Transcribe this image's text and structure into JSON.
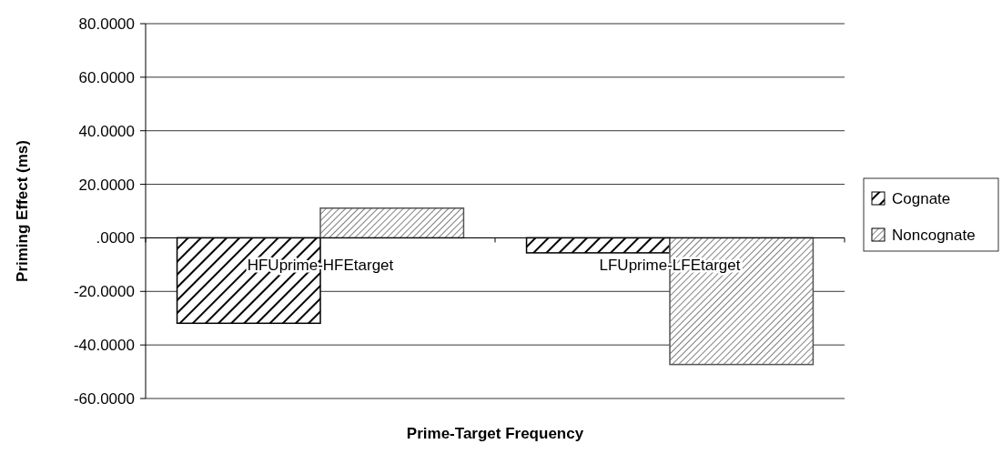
{
  "chart_data": {
    "type": "bar",
    "xlabel": "Prime-Target Frequency",
    "ylabel": "Priming Effect (ms)",
    "categories": [
      "HFUprime-HFEtarget",
      "LFUprime-LFEtarget"
    ],
    "series": [
      {
        "name": "Cognate",
        "color": "#000000",
        "values": [
          -31.9,
          -5.6
        ]
      },
      {
        "name": "Noncognate",
        "color": "#555555",
        "values": [
          11.1,
          -47.3
        ]
      }
    ],
    "ylim": [
      -60,
      80
    ],
    "yticks": [
      {
        "value": -60,
        "label": "-60.0000"
      },
      {
        "value": -40,
        "label": "-40.0000"
      },
      {
        "value": -20,
        "label": "-20.0000"
      },
      {
        "value": 0,
        "label": ".0000"
      },
      {
        "value": 20,
        "label": "20.0000"
      },
      {
        "value": 40,
        "label": "40.0000"
      },
      {
        "value": 60,
        "label": "60.0000"
      },
      {
        "value": 80,
        "label": "80.0000"
      }
    ],
    "grid": "y",
    "legend": "right"
  }
}
